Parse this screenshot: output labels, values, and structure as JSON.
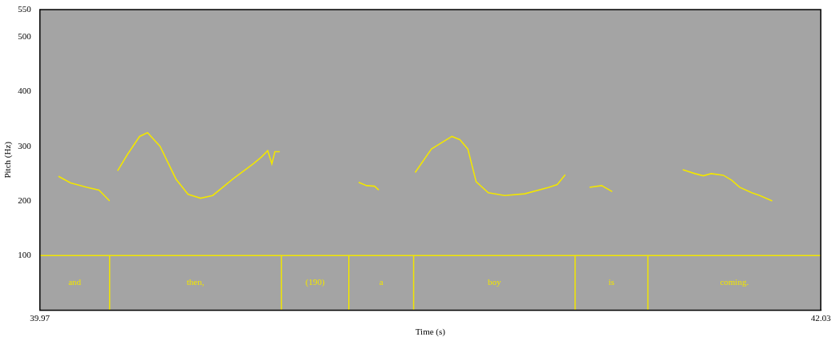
{
  "chart_data": {
    "type": "line",
    "x_label": "Time (s)",
    "y_label": "Pitch (Hz)",
    "xlim": [
      39.97,
      42.03
    ],
    "xticks": [
      39.97,
      42.03
    ],
    "ylim": [
      0,
      550
    ],
    "yticks": [
      100,
      200,
      300,
      400,
      500,
      550
    ],
    "grid": false,
    "x": [
      40.019,
      40.051,
      40.094,
      40.126,
      40.154,
      40.165,
      40.175,
      40.201,
      40.233,
      40.254,
      40.287,
      40.329,
      40.361,
      40.394,
      40.426,
      40.479,
      40.533,
      40.554,
      40.571,
      40.582,
      40.59,
      40.603,
      40.7,
      40.811,
      40.832,
      40.853,
      40.864,
      40.91,
      40.96,
      41.003,
      41.057,
      41.078,
      41.099,
      41.121,
      41.153,
      41.196,
      41.249,
      41.313,
      41.335,
      41.356,
      41.4,
      41.42,
      41.452,
      41.48,
      41.55,
      41.666,
      41.698,
      41.72,
      41.741,
      41.773,
      41.795,
      41.816,
      41.848,
      41.869,
      41.902
    ],
    "series": [
      {
        "color": "#f2e600",
        "line_style": "solid",
        "marker": "none",
        "values": [
          245,
          233,
          225,
          220,
          200,
          null,
          255,
          285,
          318,
          325,
          300,
          240,
          212,
          205,
          210,
          240,
          268,
          280,
          292,
          268,
          290,
          290,
          null,
          234,
          228,
          227,
          220,
          null,
          252,
          295,
          318,
          312,
          295,
          235,
          215,
          210,
          213,
          225,
          230,
          248,
          null,
          225,
          228,
          217,
          null,
          257,
          250,
          246,
          250,
          247,
          238,
          225,
          215,
          210,
          200
        ]
      }
    ],
    "tier": {
      "top": 100,
      "boundaries": [
        40.154,
        40.607,
        40.785,
        40.956,
        41.382,
        41.574
      ],
      "labels": [
        "and",
        "then,",
        "(190)",
        "a",
        "boy",
        "is",
        "coming."
      ]
    }
  }
}
